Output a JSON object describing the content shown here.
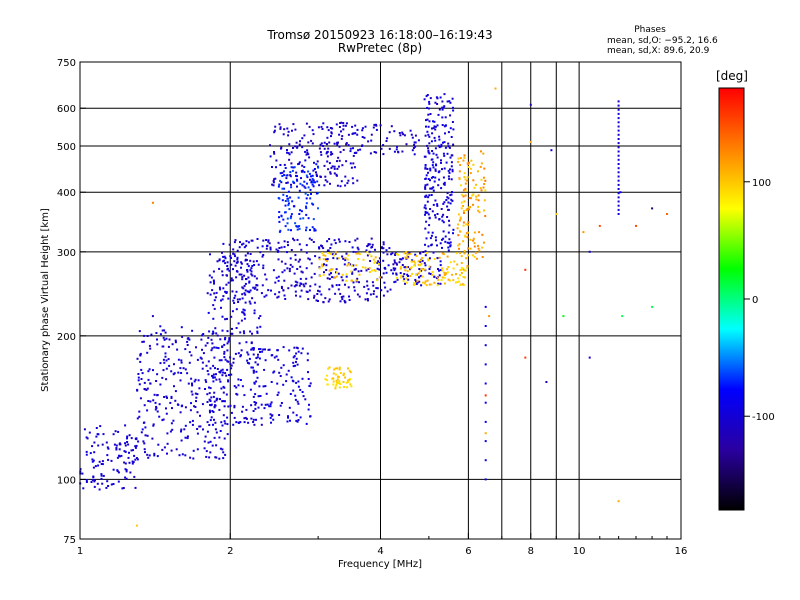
{
  "chart_data": {
    "type": "scatter",
    "title": "Tromsø 20150923 16:18:00–16:19:43",
    "subtitle": "RwPretec (8p)",
    "xlabel": "Frequency [MHz]",
    "ylabel": "Stationary phase Virtual Height [km]",
    "x_scale": "log",
    "y_scale": "log",
    "xlim": [
      1,
      16
    ],
    "ylim": [
      75,
      750
    ],
    "x_ticks": [
      1,
      2,
      4,
      6,
      8,
      10,
      16
    ],
    "y_ticks": [
      75,
      100,
      200,
      300,
      400,
      500,
      600,
      750
    ],
    "grid": true,
    "stats": {
      "heading": "Phases",
      "line1": "mean, sd,O: −95.2, 16.6",
      "line2": "mean, sd,X:  89.6, 20.9"
    },
    "colorbar": {
      "label": "[deg]",
      "range": [
        -180,
        180
      ],
      "ticks": [
        100,
        0,
        -100
      ],
      "colors": [
        "#ff0000",
        "#ff8000",
        "#ffff00",
        "#00ff00",
        "#00ffff",
        "#0000ff",
        "#2a00a0",
        "#000000"
      ]
    },
    "series": [
      {
        "mode": "O",
        "mean_phase": -95.2,
        "regions": [
          {
            "x": [
              1.0,
              1.3
            ],
            "y": [
              95,
              130
            ],
            "phase": [
              -110,
              -90
            ],
            "n": 120
          },
          {
            "x": [
              1.3,
              2.0
            ],
            "y": [
              110,
              210
            ],
            "phase": [
              -110,
              -90
            ],
            "n": 320
          },
          {
            "x": [
              1.8,
              2.3
            ],
            "y": [
              130,
              300
            ],
            "phase": [
              -110,
              -85
            ],
            "n": 240
          },
          {
            "x": [
              2.2,
              2.9
            ],
            "y": [
              130,
              190
            ],
            "phase": [
              -110,
              -85
            ],
            "n": 130
          },
          {
            "x": [
              1.9,
              4.2
            ],
            "y": [
              235,
              320
            ],
            "phase": [
              -115,
              -90
            ],
            "n": 360
          },
          {
            "x": [
              2.4,
              3.6
            ],
            "y": [
              410,
              560
            ],
            "phase": [
              -120,
              -90
            ],
            "n": 180
          },
          {
            "x": [
              2.5,
              3.0
            ],
            "y": [
              330,
              460
            ],
            "phase": [
              -80,
              -60
            ],
            "n": 120
          },
          {
            "x": [
              3.0,
              4.8
            ],
            "y": [
              480,
              560
            ],
            "phase": [
              -115,
              -95
            ],
            "n": 80
          },
          {
            "x": [
              4.9,
              5.6
            ],
            "y": [
              300,
              650
            ],
            "phase": [
              -110,
              -85
            ],
            "n": 240
          },
          {
            "x": [
              4.2,
              5.3
            ],
            "y": [
              255,
              300
            ],
            "phase": [
              -115,
              -90
            ],
            "n": 90
          }
        ]
      },
      {
        "mode": "X",
        "mean_phase": 89.6,
        "regions": [
          {
            "x": [
              3.1,
              3.5
            ],
            "y": [
              155,
              172
            ],
            "phase": [
              85,
              105
            ],
            "n": 50
          },
          {
            "x": [
              3.0,
              4.0
            ],
            "y": [
              260,
              300
            ],
            "phase": [
              85,
              110
            ],
            "n": 60
          },
          {
            "x": [
              4.3,
              6.0
            ],
            "y": [
              255,
              300
            ],
            "phase": [
              85,
              115
            ],
            "n": 120
          },
          {
            "x": [
              5.7,
              6.5
            ],
            "y": [
              290,
              490
            ],
            "phase": [
              90,
              135
            ],
            "n": 120
          }
        ]
      }
    ],
    "scattered": [
      {
        "x": 6.5,
        "y": 150,
        "phase": 160
      },
      {
        "x": 6.5,
        "y": 125,
        "phase": 110
      },
      {
        "x": 6.6,
        "y": 220,
        "phase": 120
      },
      {
        "x": 6.8,
        "y": 660,
        "phase": 110
      },
      {
        "x": 7.8,
        "y": 275,
        "phase": 160
      },
      {
        "x": 7.8,
        "y": 180,
        "phase": 155
      },
      {
        "x": 8.0,
        "y": 510,
        "phase": 110
      },
      {
        "x": 8.0,
        "y": 610,
        "phase": -110
      },
      {
        "x": 8.6,
        "y": 160,
        "phase": -115
      },
      {
        "x": 8.8,
        "y": 490,
        "phase": -100
      },
      {
        "x": 9.0,
        "y": 360,
        "phase": 100
      },
      {
        "x": 9.3,
        "y": 220,
        "phase": 20
      },
      {
        "x": 10.2,
        "y": 330,
        "phase": 120
      },
      {
        "x": 10.5,
        "y": 180,
        "phase": -110
      },
      {
        "x": 10.5,
        "y": 300,
        "phase": -100
      },
      {
        "x": 11.0,
        "y": 340,
        "phase": 150
      },
      {
        "x": 12.0,
        "y": 90,
        "phase": 110
      },
      {
        "x": 12.1,
        "y": 400,
        "phase": -90
      },
      {
        "x": 12.2,
        "y": 220,
        "phase": 10
      },
      {
        "x": 13.0,
        "y": 340,
        "phase": 150
      },
      {
        "x": 14.0,
        "y": 230,
        "phase": 10
      },
      {
        "x": 14.0,
        "y": 370,
        "phase": -140
      },
      {
        "x": 15.0,
        "y": 360,
        "phase": 140
      },
      {
        "x": 1.4,
        "y": 380,
        "phase": 130
      },
      {
        "x": 1.4,
        "y": 220,
        "phase": -110
      },
      {
        "x": 1.3,
        "y": 80,
        "phase": 100
      }
    ],
    "column_points": [
      {
        "x": 12.0,
        "y_from": 360,
        "y_to": 620,
        "phase": -100,
        "n": 28
      },
      {
        "x": 6.5,
        "y_from": 100,
        "y_to": 230,
        "phase": -90,
        "n": 10
      }
    ]
  }
}
